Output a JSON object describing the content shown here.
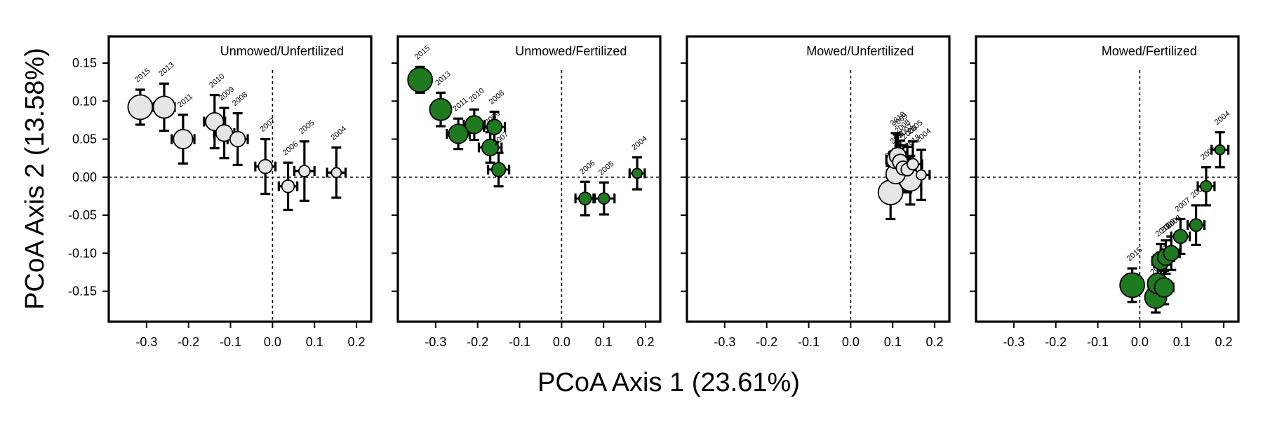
{
  "chart_data": {
    "type": "scatter",
    "xlabel": "PCoA Axis 1 (23.61%)",
    "ylabel": "PCoA Axis 2 (13.58%)",
    "xlim": [
      -0.39,
      0.235
    ],
    "ylim": [
      -0.19,
      0.185
    ],
    "x_ticks": [
      "-0.3",
      "-0.2",
      "-0.1",
      "0.0",
      "0.1",
      "0.2"
    ],
    "x_tick_values": [
      -0.3,
      -0.2,
      -0.1,
      0.0,
      0.1,
      0.2
    ],
    "y_ticks": [
      "0.15",
      "0.10",
      "0.05",
      "0.00",
      "-0.05",
      "-0.10",
      "-0.15"
    ],
    "y_tick_values": [
      0.15,
      0.1,
      0.05,
      0.0,
      -0.05,
      -0.1,
      -0.15
    ],
    "grid": false,
    "reference_lines": {
      "x": 0.0,
      "y": 0.0,
      "style": "dotted"
    },
    "colors": {
      "unfertilized_fill": "#e6e6e6",
      "fertilized_fill": "#1e7a1e",
      "outline": "#000000"
    },
    "panels": [
      {
        "title": "Unmowed/Unfertilized",
        "fill": "#e6e6e6",
        "points": [
          {
            "year": "2015",
            "x": -0.315,
            "y": 0.092,
            "xerr": 0.025,
            "yerr": 0.023
          },
          {
            "year": "2013",
            "x": -0.258,
            "y": 0.092,
            "xerr": 0.025,
            "yerr": 0.031
          },
          {
            "year": "2011",
            "x": -0.213,
            "y": 0.05,
            "xerr": 0.027,
            "yerr": 0.032
          },
          {
            "year": "2010",
            "x": -0.138,
            "y": 0.073,
            "xerr": 0.025,
            "yerr": 0.035
          },
          {
            "year": "2009",
            "x": -0.115,
            "y": 0.058,
            "xerr": 0.024,
            "yerr": 0.033
          },
          {
            "year": "2008",
            "x": -0.083,
            "y": 0.05,
            "xerr": 0.024,
            "yerr": 0.034
          },
          {
            "year": "2007",
            "x": -0.017,
            "y": 0.014,
            "xerr": 0.024,
            "yerr": 0.036
          },
          {
            "year": "2006",
            "x": 0.037,
            "y": -0.012,
            "xerr": 0.022,
            "yerr": 0.031
          },
          {
            "year": "2005",
            "x": 0.076,
            "y": 0.008,
            "xerr": 0.024,
            "yerr": 0.039
          },
          {
            "year": "2004",
            "x": 0.152,
            "y": 0.006,
            "xerr": 0.022,
            "yerr": 0.033
          }
        ]
      },
      {
        "title": "Unmowed/Fertilized",
        "fill": "#1e7a1e",
        "points": [
          {
            "year": "2015",
            "x": -0.337,
            "y": 0.128,
            "xerr": 0.018,
            "yerr": 0.017
          },
          {
            "year": "2013",
            "x": -0.288,
            "y": 0.089,
            "xerr": 0.022,
            "yerr": 0.022
          },
          {
            "year": "2011",
            "x": -0.246,
            "y": 0.057,
            "xerr": 0.027,
            "yerr": 0.02
          },
          {
            "year": "2010",
            "x": -0.208,
            "y": 0.069,
            "xerr": 0.025,
            "yerr": 0.02
          },
          {
            "year": "2008",
            "x": -0.16,
            "y": 0.066,
            "xerr": 0.025,
            "yerr": 0.02
          },
          {
            "year": "2009",
            "x": -0.17,
            "y": 0.039,
            "xerr": 0.027,
            "yerr": 0.02
          },
          {
            "year": "2007",
            "x": -0.15,
            "y": 0.01,
            "xerr": 0.025,
            "yerr": 0.022
          },
          {
            "year": "2006",
            "x": 0.056,
            "y": -0.028,
            "xerr": 0.023,
            "yerr": 0.022
          },
          {
            "year": "2005",
            "x": 0.101,
            "y": -0.028,
            "xerr": 0.025,
            "yerr": 0.021
          },
          {
            "year": "2004",
            "x": 0.18,
            "y": 0.005,
            "xerr": 0.018,
            "yerr": 0.021
          }
        ]
      },
      {
        "title": "Mowed/Unfertilized",
        "fill": "#e6e6e6",
        "points": [
          {
            "year": "2015",
            "x": 0.095,
            "y": -0.02,
            "xerr": 0.022,
            "yerr": 0.035
          },
          {
            "year": "2013",
            "x": 0.142,
            "y": -0.004,
            "xerr": 0.022,
            "yerr": 0.032
          },
          {
            "year": "2011",
            "x": 0.107,
            "y": 0.004,
            "xerr": 0.02,
            "yerr": 0.03
          },
          {
            "year": "2010",
            "x": 0.107,
            "y": 0.023,
            "xerr": 0.022,
            "yerr": 0.035
          },
          {
            "year": "2009",
            "x": 0.112,
            "y": 0.028,
            "xerr": 0.02,
            "yerr": 0.028
          },
          {
            "year": "2008",
            "x": 0.118,
            "y": 0.02,
            "xerr": 0.02,
            "yerr": 0.028
          },
          {
            "year": "2007",
            "x": 0.125,
            "y": 0.012,
            "xerr": 0.022,
            "yerr": 0.03
          },
          {
            "year": "2006",
            "x": 0.135,
            "y": 0.01,
            "xerr": 0.02,
            "yerr": 0.03
          },
          {
            "year": "2005",
            "x": 0.148,
            "y": 0.017,
            "xerr": 0.022,
            "yerr": 0.03
          },
          {
            "year": "2004",
            "x": 0.168,
            "y": 0.003,
            "xerr": 0.02,
            "yerr": 0.033
          }
        ]
      },
      {
        "title": "Mowed/Fertilized",
        "fill": "#1e7a1e",
        "points": [
          {
            "year": "2015",
            "x": -0.018,
            "y": -0.142,
            "xerr": 0.022,
            "yerr": 0.022
          },
          {
            "year": "2013",
            "x": 0.038,
            "y": -0.158,
            "xerr": 0.022,
            "yerr": 0.02
          },
          {
            "year": "2012",
            "x": 0.043,
            "y": -0.14,
            "xerr": 0.022,
            "yerr": 0.022
          },
          {
            "year": "2011",
            "x": 0.058,
            "y": -0.145,
            "xerr": 0.022,
            "yerr": 0.022
          },
          {
            "year": "2010",
            "x": 0.05,
            "y": -0.11,
            "xerr": 0.02,
            "yerr": 0.022
          },
          {
            "year": "2009",
            "x": 0.062,
            "y": -0.105,
            "xerr": 0.02,
            "yerr": 0.022
          },
          {
            "year": "2008",
            "x": 0.075,
            "y": -0.1,
            "xerr": 0.02,
            "yerr": 0.022
          },
          {
            "year": "2007",
            "x": 0.097,
            "y": -0.078,
            "xerr": 0.022,
            "yerr": 0.023
          },
          {
            "year": "2006",
            "x": 0.134,
            "y": -0.063,
            "xerr": 0.02,
            "yerr": 0.026
          },
          {
            "year": "2005",
            "x": 0.158,
            "y": -0.012,
            "xerr": 0.02,
            "yerr": 0.025
          },
          {
            "year": "2004",
            "x": 0.191,
            "y": 0.036,
            "xerr": 0.02,
            "yerr": 0.023
          }
        ]
      }
    ]
  }
}
